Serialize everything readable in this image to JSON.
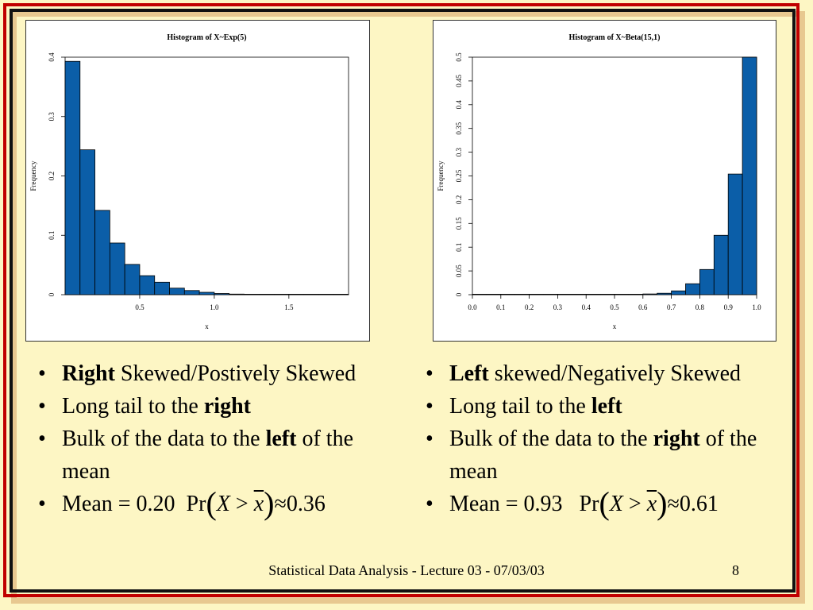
{
  "chart_data": [
    {
      "type": "bar",
      "title": "Histogram of X~Exp(5)",
      "xlabel": "x",
      "ylabel": "Frequency",
      "bin_edges": [
        0.0,
        0.1,
        0.2,
        0.3,
        0.4,
        0.5,
        0.6,
        0.7,
        0.8,
        0.9,
        1.0,
        1.1,
        1.2,
        1.3,
        1.4,
        1.5,
        1.6,
        1.7,
        1.8,
        1.9
      ],
      "values": [
        0.393,
        0.244,
        0.142,
        0.087,
        0.051,
        0.032,
        0.021,
        0.011,
        0.007,
        0.004,
        0.002,
        0.001,
        0.0005,
        0.0003,
        0.0002,
        0.0001,
        0.0001,
        0.0001,
        0.0001
      ],
      "xlim": [
        0.0,
        1.9
      ],
      "ylim": [
        0,
        0.4
      ],
      "xticks": [
        0.5,
        1.0,
        1.5
      ],
      "xtick_labels": [
        "0.5",
        "1.0",
        "1.5"
      ],
      "yticks": [
        0,
        0.1,
        0.2,
        0.3,
        0.4
      ],
      "ytick_labels": [
        "0",
        "0.1",
        "0.2",
        "0.3",
        "0.4"
      ],
      "bar_color": "#0b5ea8",
      "grid": false
    },
    {
      "type": "bar",
      "title": "Histogram of X~Beta(15,1)",
      "xlabel": "x",
      "ylabel": "Frequency",
      "bin_edges": [
        0.0,
        0.05,
        0.1,
        0.15,
        0.2,
        0.25,
        0.3,
        0.35,
        0.4,
        0.45,
        0.5,
        0.55,
        0.6,
        0.65,
        0.7,
        0.75,
        0.8,
        0.85,
        0.9,
        0.95,
        1.0
      ],
      "values": [
        0,
        0,
        0,
        0,
        0,
        0,
        0,
        0,
        0,
        0,
        0.0005,
        0.0008,
        0.0015,
        0.003,
        0.008,
        0.023,
        0.053,
        0.125,
        0.254,
        0.5
      ],
      "xlim": [
        0.0,
        1.0
      ],
      "ylim": [
        0,
        0.5
      ],
      "xticks": [
        0.0,
        0.1,
        0.2,
        0.3,
        0.4,
        0.5,
        0.6,
        0.7,
        0.8,
        0.9,
        1.0
      ],
      "xtick_labels": [
        "0.0",
        "0.1",
        "0.2",
        "0.3",
        "0.4",
        "0.5",
        "0.6",
        "0.7",
        "0.8",
        "0.9",
        "1.0"
      ],
      "yticks": [
        0,
        0.05,
        0.1,
        0.15,
        0.2,
        0.25,
        0.3,
        0.35,
        0.4,
        0.45,
        0.5
      ],
      "ytick_labels": [
        "0",
        "0.05",
        "0.1",
        "0.15",
        "0.2",
        "0.25",
        "0.3",
        "0.35",
        "0.4",
        "0.45",
        "0.5"
      ],
      "bar_color": "#0b5ea8",
      "grid": false
    }
  ],
  "left_bullets": {
    "b1_bold": "Right",
    "b1_rest": " Skewed/Postively Skewed",
    "b2_text": "Long tail to the ",
    "b2_bold": "right",
    "b3_text": "Bulk of the data to the ",
    "b3_bold": "left",
    "b3_rest": " of the mean",
    "b4_text": "Mean = 0.20",
    "b4_prob": "0.36"
  },
  "right_bullets": {
    "b1_bold": "Left",
    "b1_rest": " skewed/Negatively Skewed",
    "b2_text": "Long tail to the ",
    "b2_bold": "left",
    "b3_text": "Bulk of the data to the ",
    "b3_bold": "right",
    "b3_rest": " of the mean",
    "b4_text": "Mean = 0.93",
    "b4_prob": "0.61"
  },
  "math": {
    "pr": "Pr",
    "open": "(",
    "var": "X",
    "gt": " > ",
    "xbar": "x",
    "close": ")",
    "approx": "≈"
  },
  "bullet_char": "•",
  "footer": "Statistical Data Analysis - Lecture 03 - 07/03/03",
  "page_number": "8",
  "colors": {
    "background": "#fdf6c4",
    "outer_frame": "#c00000",
    "inner_frame": "#111111",
    "shadow_frame": "#e8c890",
    "bar": "#0b5ea8"
  }
}
